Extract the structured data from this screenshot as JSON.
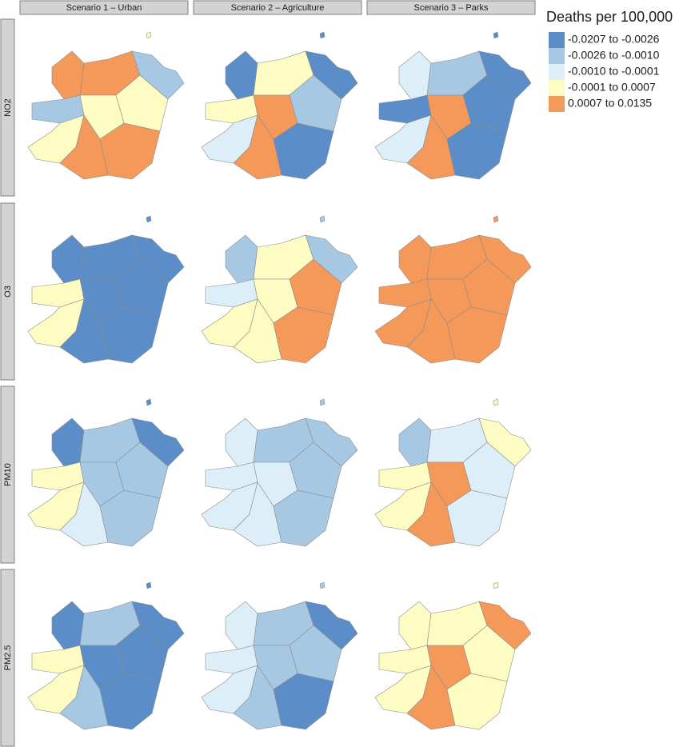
{
  "columns": [
    "Scenario 1 – Urban",
    "Scenario 2 – Agriculture",
    "Scenario 3 – Parks"
  ],
  "rows": [
    "NO2",
    "O3",
    "PM10",
    "PM2.5"
  ],
  "legend": {
    "title": "Deaths per 100,000",
    "entries": [
      {
        "label": "-0.0207 to -0.0026",
        "color": "#5b8ec9"
      },
      {
        "label": "-0.0026 to -0.0010",
        "color": "#a6c8e3"
      },
      {
        "label": "-0.0010 to -0.0001",
        "color": "#dceef7"
      },
      {
        "label": "-0.0001 to 0.0007",
        "color": "#fdfcc2"
      },
      {
        "label": "0.0007 to 0.0135",
        "color": "#f4995a"
      }
    ]
  }
}
